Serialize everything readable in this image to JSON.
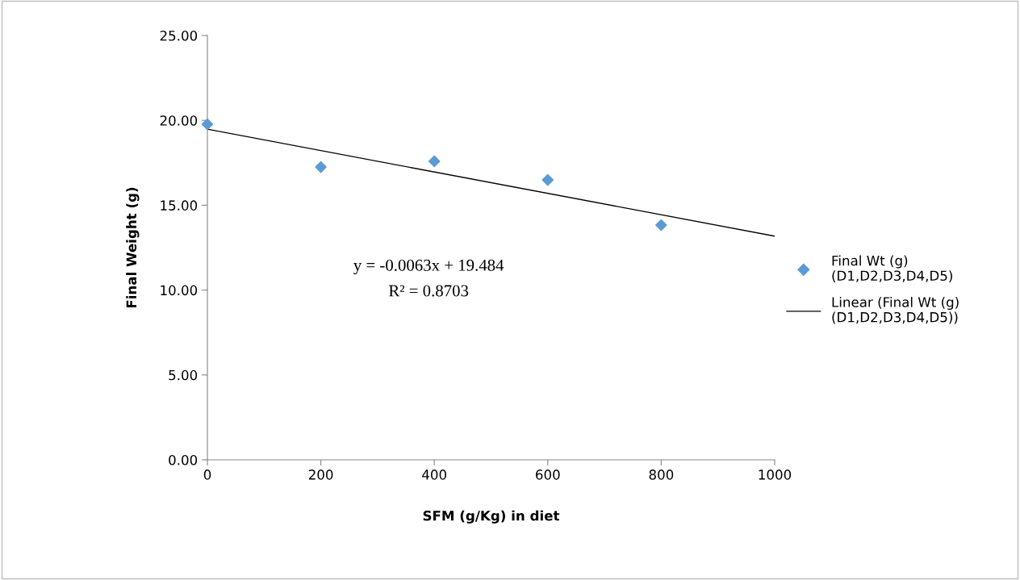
{
  "chart_data": {
    "type": "scatter",
    "xlabel": "SFM (g/Kg) in diet",
    "ylabel": "Final Weight (g)",
    "series": [
      {
        "name": "Final Wt (g)\n(D1,D2,D3,D4,D5)",
        "color": "#5b9bd5",
        "marker": "diamond",
        "x": [
          0,
          200,
          400,
          600,
          800
        ],
        "values": [
          19.77,
          17.25,
          17.59,
          16.49,
          13.83
        ]
      },
      {
        "name": "Linear (Final Wt (g)\n(D1,D2,D3,D4,D5))",
        "type": "line",
        "color": "#000000",
        "line_style": "solid",
        "x": [
          0,
          1000
        ],
        "values": [
          19.48,
          13.18
        ]
      }
    ],
    "xlim": [
      0,
      1000
    ],
    "xticks": [
      0,
      200,
      400,
      600,
      800,
      1000
    ],
    "ylim": [
      0,
      25
    ],
    "yticks": [
      {
        "value": 0,
        "label": "0.00"
      },
      {
        "value": 5,
        "label": "5.00"
      },
      {
        "value": 10,
        "label": "10.00"
      },
      {
        "value": 15,
        "label": "15.00"
      },
      {
        "value": 20,
        "label": "20.00"
      },
      {
        "value": 25,
        "label": "25.00"
      }
    ],
    "annotations": [
      "y = -0.0063x + 19.484",
      "R² = 0.8703"
    ],
    "grid": false,
    "legend": "right"
  }
}
